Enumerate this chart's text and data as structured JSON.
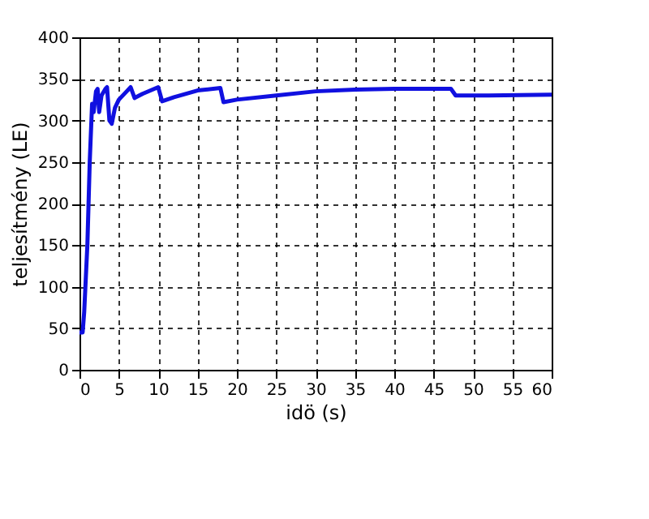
{
  "chart_data": {
    "type": "line",
    "xlabel": "idö (s)",
    "ylabel": "teljesítmény (LE)",
    "x": [
      0,
      0.4,
      0.6,
      1,
      1.3,
      1.6,
      1.8,
      2.1,
      2.3,
      2.5,
      2.8,
      3.3,
      3.5,
      3.8,
      4.1,
      4.5,
      5,
      6,
      6.5,
      7,
      8,
      10,
      10.5,
      12,
      15,
      17.9,
      18.3,
      20,
      25,
      30,
      35,
      40,
      47.2,
      47.8,
      52,
      60
    ],
    "series": [
      {
        "color": "#1010e0",
        "values": [
          45,
          45,
          70,
          150,
          250,
          320,
          310,
          335,
          338,
          310,
          330,
          338,
          340,
          300,
          296,
          315,
          325,
          335,
          340,
          327,
          332,
          340,
          323,
          328,
          336,
          339,
          322,
          325,
          330,
          335,
          337,
          338,
          338,
          330,
          330,
          331
        ]
      }
    ],
    "xlim": [
      0,
      60
    ],
    "xticks": [
      0,
      5,
      10,
      15,
      20,
      25,
      30,
      35,
      40,
      45,
      50,
      55,
      60
    ],
    "ylim": [
      0,
      400
    ],
    "yticks": [
      0,
      50,
      100,
      150,
      200,
      250,
      300,
      350,
      400
    ],
    "grid": true,
    "marker": "none",
    "line_style": "solid"
  }
}
